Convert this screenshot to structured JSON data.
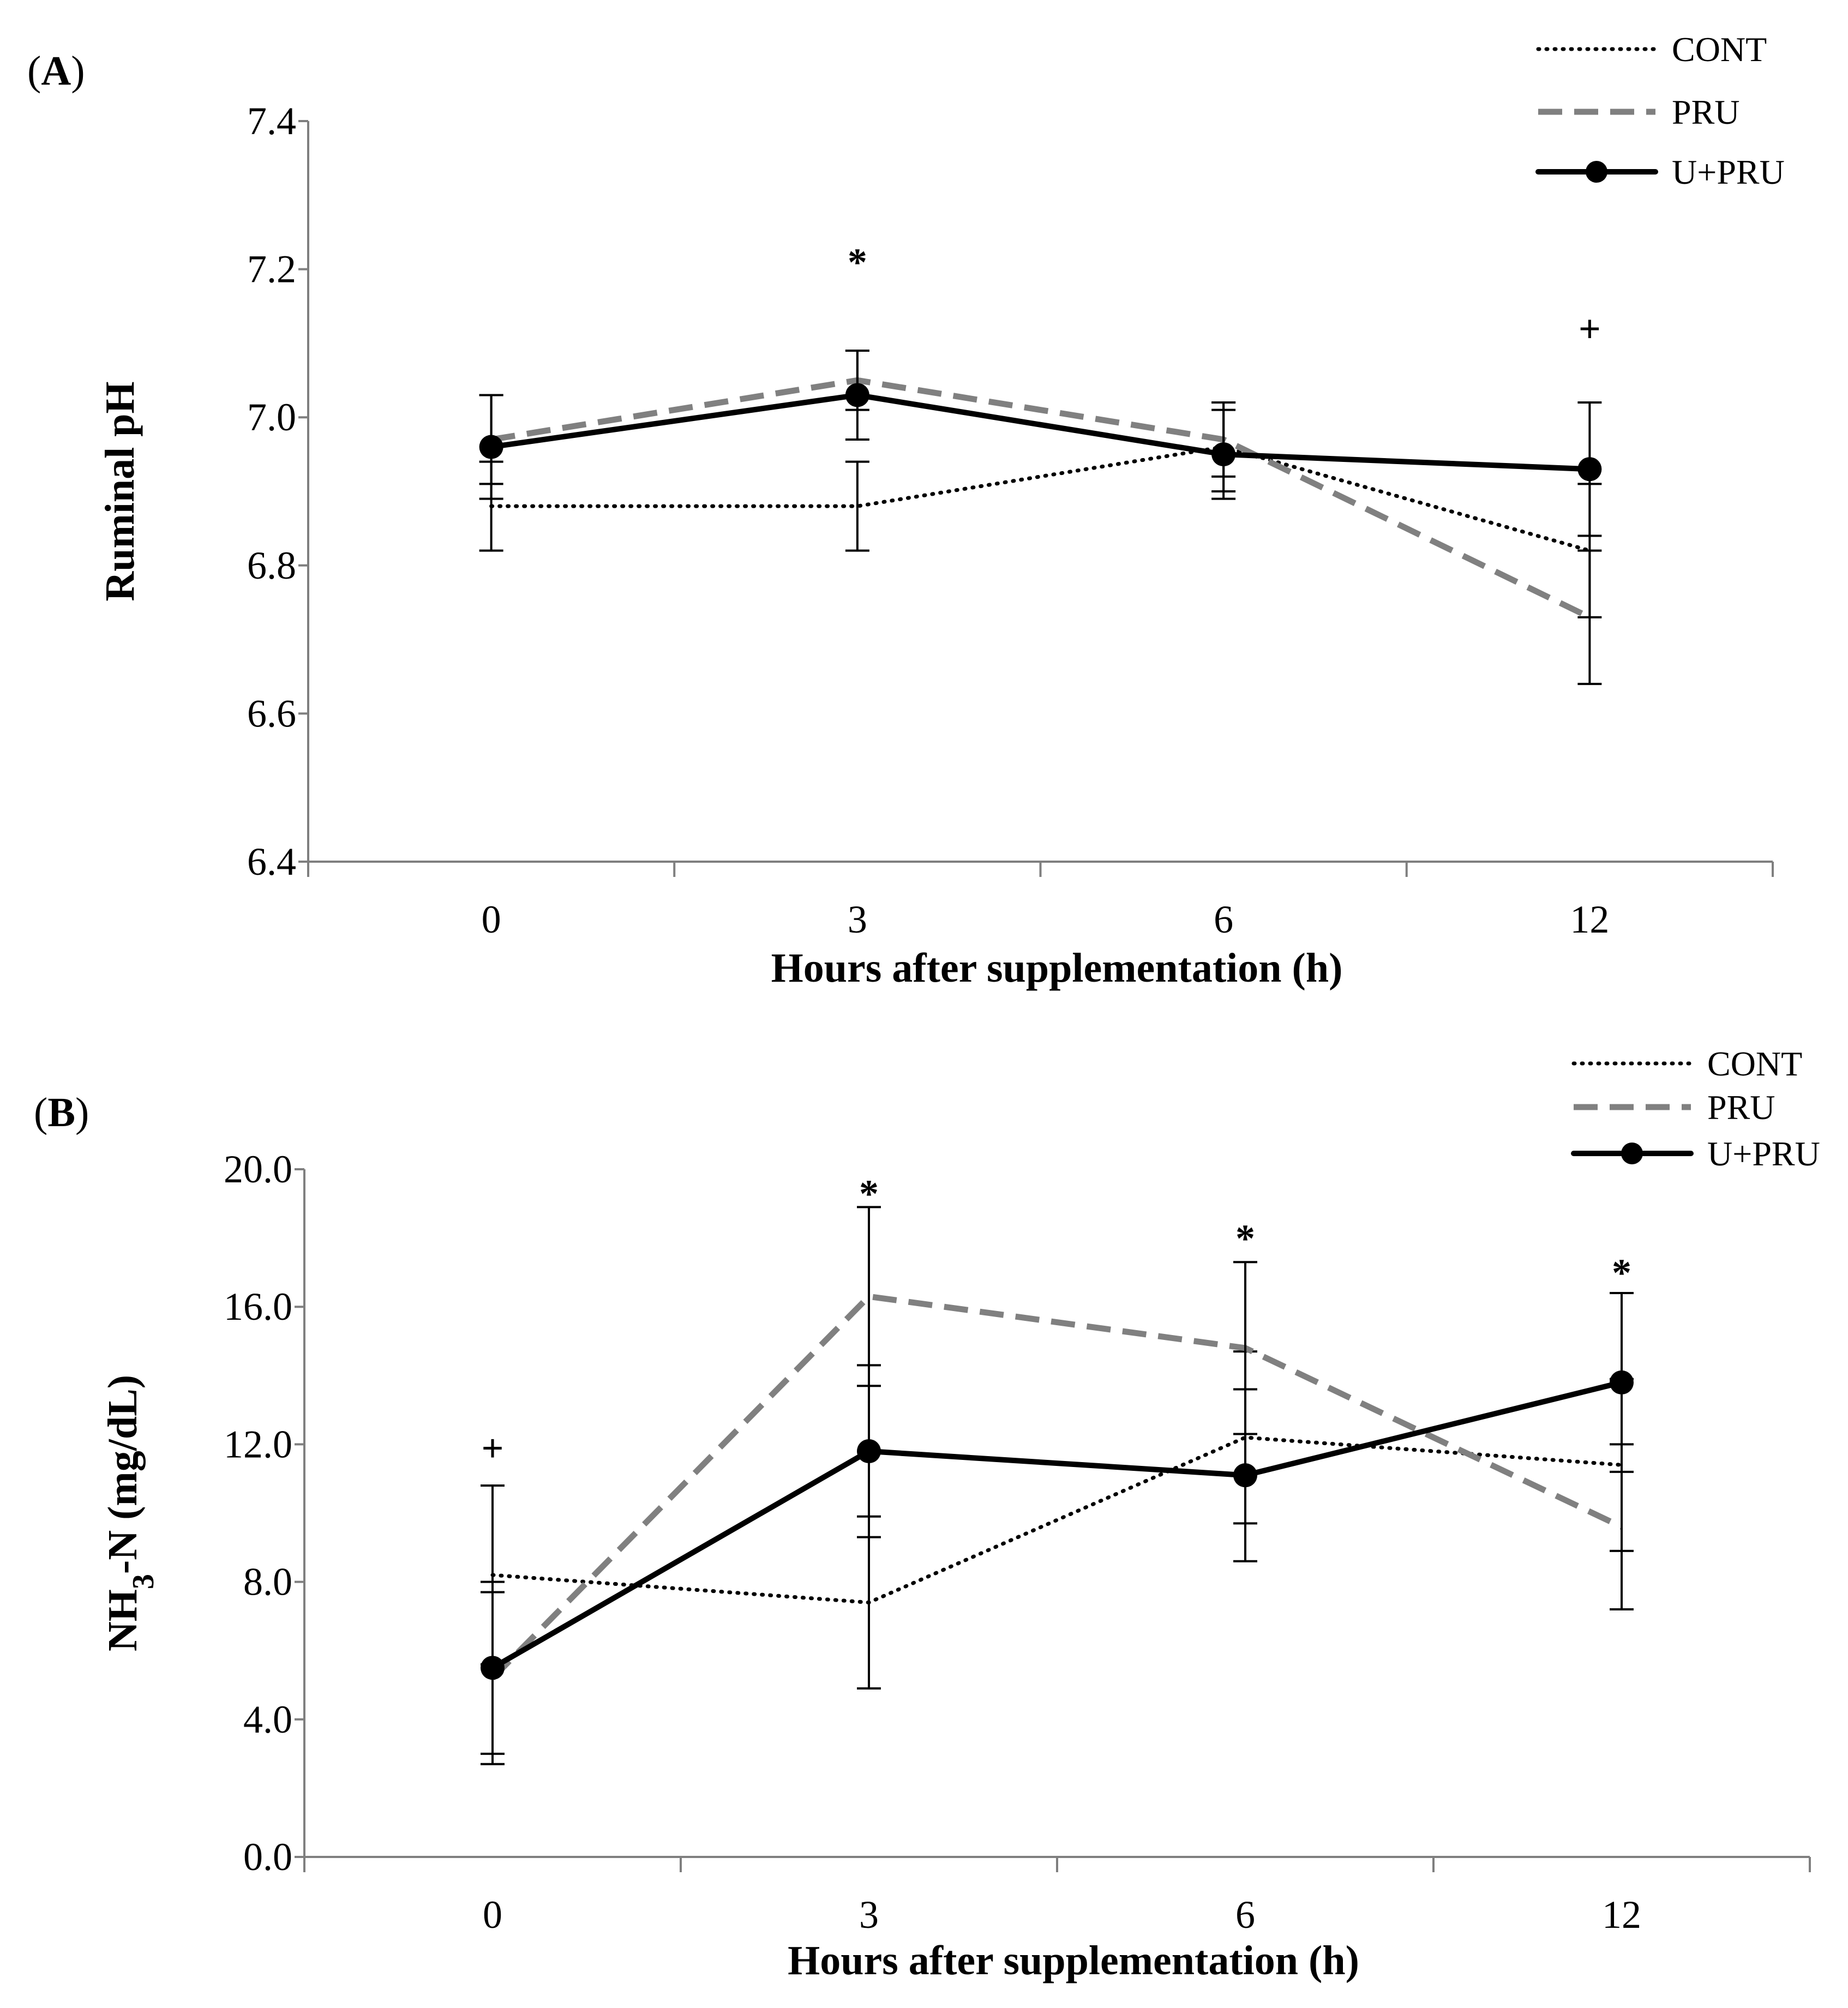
{
  "figure": {
    "colors": {
      "CONT": "#000000",
      "PRU": "#808080",
      "U+PRU": "#000000",
      "axis": "#7f7f7f"
    }
  },
  "chart_data": [
    {
      "type": "line",
      "panel_label": "A",
      "title": "",
      "xlabel": "Hours after supplementation (h)",
      "ylabel": "Ruminal pH",
      "categories": [
        "0",
        "3",
        "6",
        "12"
      ],
      "ylim": [
        6.4,
        7.4
      ],
      "yticks": [
        6.4,
        6.6,
        6.8,
        7.0,
        7.2,
        7.4
      ],
      "ytick_labels": [
        "6.4",
        "6.6",
        "6.8",
        "7.0",
        "7.2",
        "7.4"
      ],
      "legend_position": "top-right",
      "series": [
        {
          "name": "CONT",
          "style": "dotted",
          "values": [
            6.88,
            6.88,
            6.96,
            6.82
          ],
          "errors": [
            0.06,
            0.06,
            0.06,
            0.09
          ]
        },
        {
          "name": "PRU",
          "style": "dashed",
          "values": [
            6.97,
            7.05,
            6.97,
            6.73
          ],
          "errors": [
            0.06,
            0.04,
            0.05,
            0.09
          ]
        },
        {
          "name": "U+PRU",
          "style": "solid-marker",
          "values": [
            6.96,
            7.03,
            6.95,
            6.93
          ],
          "errors": [
            0.07,
            0.06,
            0.06,
            0.09
          ]
        }
      ],
      "annotations": [
        {
          "category_index": 1,
          "text": "*",
          "y": 7.21
        },
        {
          "category_index": 3,
          "text": "+",
          "y": 7.12
        }
      ]
    },
    {
      "type": "line",
      "panel_label": "B",
      "title": "",
      "xlabel": "Hours after supplementation (h)",
      "ylabel_main": "NH",
      "ylabel_sub": "3",
      "ylabel_rest": "-N (mg/dL)",
      "categories": [
        "0",
        "3",
        "6",
        "12"
      ],
      "ylim": [
        0,
        20
      ],
      "yticks": [
        0,
        4,
        8,
        12,
        16,
        20
      ],
      "ytick_labels": [
        "0.0",
        "4.0",
        "8.0",
        "12.0",
        "16.0",
        "20.0"
      ],
      "legend_position": "top-right",
      "series": [
        {
          "name": "CONT",
          "style": "dotted",
          "values": [
            8.2,
            7.4,
            12.2,
            11.4
          ],
          "errors": [
            2.6,
            2.5,
            2.5,
            2.5
          ]
        },
        {
          "name": "PRU",
          "style": "dashed",
          "values": [
            5.2,
            16.3,
            14.8,
            9.6
          ],
          "errors": [
            2.5,
            2.6,
            2.5,
            2.4
          ]
        },
        {
          "name": "U+PRU",
          "style": "solid-marker",
          "values": [
            5.5,
            11.8,
            11.1,
            13.8
          ],
          "errors": [
            2.5,
            2.5,
            2.5,
            2.6
          ]
        }
      ],
      "annotations": [
        {
          "category_index": 0,
          "text": "+",
          "y": 11.9
        },
        {
          "category_index": 1,
          "text": "*",
          "y": 19.3
        },
        {
          "category_index": 2,
          "text": "*",
          "y": 18.0
        },
        {
          "category_index": 3,
          "text": "*",
          "y": 17.0
        }
      ]
    }
  ]
}
